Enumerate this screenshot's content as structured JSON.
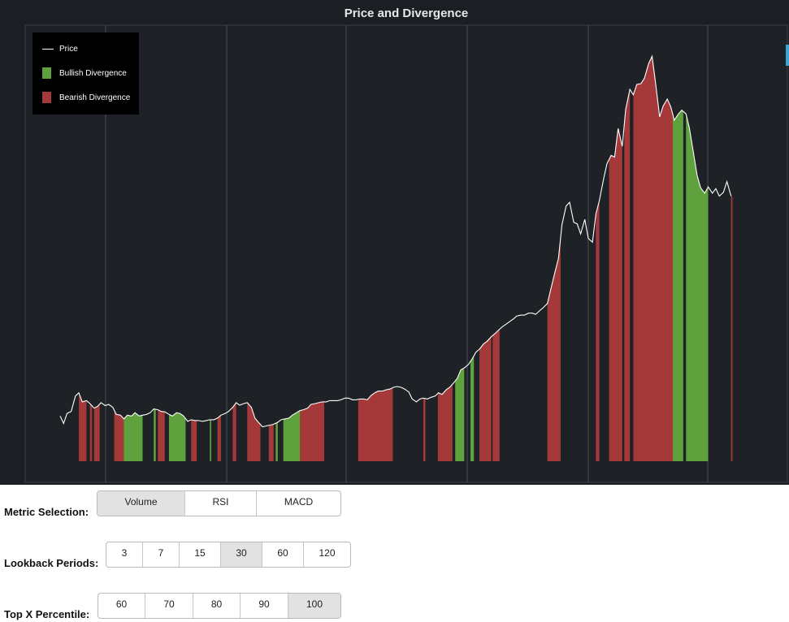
{
  "chart": {
    "title": "Price and Divergence",
    "legend": [
      {
        "label": "Price",
        "kind": "line",
        "color": "#ffffff"
      },
      {
        "label": "Bullish Divergence",
        "kind": "box",
        "color": "#5fa13d"
      },
      {
        "label": "Bearish Divergence",
        "kind": "box",
        "color": "#a53939"
      }
    ]
  },
  "chart_data": {
    "type": "area",
    "title": "Price and Divergence",
    "xlabel": "",
    "ylabel": "",
    "grid": "vertical",
    "legend_position": "top-left",
    "colors": {
      "price": "#ffffff",
      "bullish": "#5fa13d",
      "bearish": "#a53939",
      "background": "#1e2226",
      "grid": "#4a4f55"
    },
    "price_series": [
      [
        0.0,
        0.109
      ],
      [
        0.005,
        0.091
      ],
      [
        0.01,
        0.115
      ],
      [
        0.016,
        0.12
      ],
      [
        0.022,
        0.157
      ],
      [
        0.027,
        0.165
      ],
      [
        0.032,
        0.143
      ],
      [
        0.038,
        0.146
      ],
      [
        0.043,
        0.139
      ],
      [
        0.049,
        0.128
      ],
      [
        0.054,
        0.132
      ],
      [
        0.059,
        0.141
      ],
      [
        0.065,
        0.134
      ],
      [
        0.07,
        0.137
      ],
      [
        0.076,
        0.13
      ],
      [
        0.081,
        0.113
      ],
      [
        0.087,
        0.111
      ],
      [
        0.092,
        0.102
      ],
      [
        0.097,
        0.111
      ],
      [
        0.103,
        0.109
      ],
      [
        0.108,
        0.117
      ],
      [
        0.114,
        0.109
      ],
      [
        0.119,
        0.111
      ],
      [
        0.125,
        0.113
      ],
      [
        0.13,
        0.117
      ],
      [
        0.135,
        0.126
      ],
      [
        0.141,
        0.124
      ],
      [
        0.146,
        0.12
      ],
      [
        0.151,
        0.119
      ],
      [
        0.157,
        0.113
      ],
      [
        0.162,
        0.109
      ],
      [
        0.168,
        0.117
      ],
      [
        0.173,
        0.115
      ],
      [
        0.178,
        0.109
      ],
      [
        0.184,
        0.096
      ],
      [
        0.189,
        0.1
      ],
      [
        0.195,
        0.098
      ],
      [
        0.2,
        0.098
      ],
      [
        0.205,
        0.096
      ],
      [
        0.211,
        0.098
      ],
      [
        0.216,
        0.1
      ],
      [
        0.222,
        0.1
      ],
      [
        0.227,
        0.104
      ],
      [
        0.232,
        0.111
      ],
      [
        0.238,
        0.115
      ],
      [
        0.243,
        0.12
      ],
      [
        0.249,
        0.13
      ],
      [
        0.254,
        0.141
      ],
      [
        0.259,
        0.135
      ],
      [
        0.265,
        0.139
      ],
      [
        0.27,
        0.141
      ],
      [
        0.276,
        0.13
      ],
      [
        0.281,
        0.104
      ],
      [
        0.286,
        0.094
      ],
      [
        0.292,
        0.083
      ],
      [
        0.297,
        0.085
      ],
      [
        0.303,
        0.087
      ],
      [
        0.308,
        0.089
      ],
      [
        0.314,
        0.094
      ],
      [
        0.319,
        0.1
      ],
      [
        0.324,
        0.102
      ],
      [
        0.33,
        0.104
      ],
      [
        0.335,
        0.111
      ],
      [
        0.341,
        0.117
      ],
      [
        0.346,
        0.122
      ],
      [
        0.351,
        0.124
      ],
      [
        0.357,
        0.128
      ],
      [
        0.362,
        0.137
      ],
      [
        0.368,
        0.139
      ],
      [
        0.373,
        0.141
      ],
      [
        0.378,
        0.143
      ],
      [
        0.384,
        0.143
      ],
      [
        0.389,
        0.146
      ],
      [
        0.395,
        0.146
      ],
      [
        0.4,
        0.146
      ],
      [
        0.405,
        0.148
      ],
      [
        0.411,
        0.152
      ],
      [
        0.416,
        0.152
      ],
      [
        0.422,
        0.148
      ],
      [
        0.427,
        0.148
      ],
      [
        0.432,
        0.15
      ],
      [
        0.438,
        0.15
      ],
      [
        0.443,
        0.148
      ],
      [
        0.449,
        0.159
      ],
      [
        0.454,
        0.165
      ],
      [
        0.459,
        0.169
      ],
      [
        0.465,
        0.169
      ],
      [
        0.47,
        0.172
      ],
      [
        0.476,
        0.174
      ],
      [
        0.481,
        0.178
      ],
      [
        0.486,
        0.18
      ],
      [
        0.492,
        0.178
      ],
      [
        0.497,
        0.174
      ],
      [
        0.503,
        0.167
      ],
      [
        0.508,
        0.15
      ],
      [
        0.514,
        0.143
      ],
      [
        0.519,
        0.15
      ],
      [
        0.524,
        0.152
      ],
      [
        0.53,
        0.15
      ],
      [
        0.535,
        0.154
      ],
      [
        0.541,
        0.157
      ],
      [
        0.546,
        0.165
      ],
      [
        0.551,
        0.161
      ],
      [
        0.557,
        0.172
      ],
      [
        0.562,
        0.178
      ],
      [
        0.568,
        0.189
      ],
      [
        0.573,
        0.2
      ],
      [
        0.578,
        0.22
      ],
      [
        0.584,
        0.226
      ],
      [
        0.589,
        0.233
      ],
      [
        0.595,
        0.248
      ],
      [
        0.6,
        0.263
      ],
      [
        0.605,
        0.27
      ],
      [
        0.611,
        0.283
      ],
      [
        0.616,
        0.289
      ],
      [
        0.622,
        0.3
      ],
      [
        0.627,
        0.307
      ],
      [
        0.632,
        0.315
      ],
      [
        0.638,
        0.324
      ],
      [
        0.643,
        0.33
      ],
      [
        0.649,
        0.337
      ],
      [
        0.654,
        0.343
      ],
      [
        0.659,
        0.35
      ],
      [
        0.665,
        0.352
      ],
      [
        0.67,
        0.352
      ],
      [
        0.676,
        0.357
      ],
      [
        0.681,
        0.357
      ],
      [
        0.686,
        0.354
      ],
      [
        0.692,
        0.363
      ],
      [
        0.697,
        0.37
      ],
      [
        0.703,
        0.38
      ],
      [
        0.708,
        0.415
      ],
      [
        0.714,
        0.456
      ],
      [
        0.719,
        0.489
      ],
      [
        0.724,
        0.57
      ],
      [
        0.73,
        0.615
      ],
      [
        0.735,
        0.624
      ],
      [
        0.741,
        0.576
      ],
      [
        0.746,
        0.572
      ],
      [
        0.751,
        0.548
      ],
      [
        0.757,
        0.583
      ],
      [
        0.762,
        0.537
      ],
      [
        0.768,
        0.528
      ],
      [
        0.773,
        0.596
      ],
      [
        0.778,
        0.628
      ],
      [
        0.784,
        0.68
      ],
      [
        0.789,
        0.717
      ],
      [
        0.795,
        0.737
      ],
      [
        0.8,
        0.733
      ],
      [
        0.805,
        0.802
      ],
      [
        0.811,
        0.759
      ],
      [
        0.816,
        0.848
      ],
      [
        0.822,
        0.896
      ],
      [
        0.827,
        0.883
      ],
      [
        0.832,
        0.908
      ],
      [
        0.838,
        0.91
      ],
      [
        0.843,
        0.923
      ],
      [
        0.849,
        0.958
      ],
      [
        0.854,
        0.976
      ],
      [
        0.859,
        0.913
      ],
      [
        0.865,
        0.83
      ],
      [
        0.87,
        0.856
      ],
      [
        0.876,
        0.873
      ],
      [
        0.881,
        0.854
      ],
      [
        0.886,
        0.822
      ],
      [
        0.892,
        0.837
      ],
      [
        0.897,
        0.846
      ],
      [
        0.903,
        0.837
      ],
      [
        0.908,
        0.802
      ],
      [
        0.914,
        0.741
      ],
      [
        0.919,
        0.689
      ],
      [
        0.924,
        0.659
      ],
      [
        0.93,
        0.646
      ],
      [
        0.935,
        0.661
      ],
      [
        0.941,
        0.646
      ],
      [
        0.946,
        0.657
      ],
      [
        0.951,
        0.639
      ],
      [
        0.957,
        0.648
      ],
      [
        0.962,
        0.674
      ],
      [
        0.968,
        0.639
      ]
    ],
    "bullish_bands": [
      [
        0.092,
        0.119
      ],
      [
        0.135,
        0.138
      ],
      [
        0.157,
        0.181
      ],
      [
        0.216,
        0.218
      ],
      [
        0.311,
        0.314
      ],
      [
        0.322,
        0.349
      ],
      [
        0.57,
        0.583
      ],
      [
        0.592,
        0.597
      ],
      [
        0.868,
        0.899
      ],
      [
        0.903,
        0.935
      ]
    ],
    "bearish_bands": [
      [
        0.027,
        0.038
      ],
      [
        0.043,
        0.046
      ],
      [
        0.049,
        0.057
      ],
      [
        0.078,
        0.092
      ],
      [
        0.141,
        0.151
      ],
      [
        0.189,
        0.197
      ],
      [
        0.227,
        0.232
      ],
      [
        0.249,
        0.254
      ],
      [
        0.27,
        0.289
      ],
      [
        0.301,
        0.308
      ],
      [
        0.346,
        0.381
      ],
      [
        0.43,
        0.48
      ],
      [
        0.524,
        0.527
      ],
      [
        0.545,
        0.566
      ],
      [
        0.605,
        0.622
      ],
      [
        0.624,
        0.634
      ],
      [
        0.703,
        0.722
      ],
      [
        0.773,
        0.778
      ],
      [
        0.792,
        0.811
      ],
      [
        0.814,
        0.822
      ],
      [
        0.827,
        0.884
      ],
      [
        0.968,
        0.97
      ]
    ]
  },
  "controls": {
    "metric": {
      "label": "Metric Selection:",
      "options": [
        "Volume",
        "RSI",
        "MACD"
      ],
      "selected": "Volume"
    },
    "lookback": {
      "label": "Lookback Periods:",
      "options": [
        "3",
        "7",
        "15",
        "30",
        "60",
        "120"
      ],
      "selected": "30"
    },
    "percentile": {
      "label": "Top X Percentile:",
      "options": [
        "60",
        "70",
        "80",
        "90",
        "100"
      ],
      "selected": "100"
    }
  }
}
